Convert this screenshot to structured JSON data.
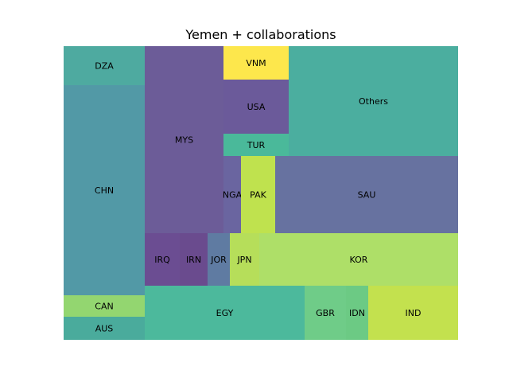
{
  "chart_data": {
    "type": "treemap",
    "title": "Yemen + collaborations",
    "items": [
      {
        "label": "DZA",
        "color": "#4eaaa0"
      },
      {
        "label": "CHN",
        "color": "#5299a6"
      },
      {
        "label": "CAN",
        "color": "#93d670"
      },
      {
        "label": "AUS",
        "color": "#4aab9c"
      },
      {
        "label": "MYS",
        "color": "#6c5c98"
      },
      {
        "label": "VNM",
        "color": "#fde74c"
      },
      {
        "label": "USA",
        "color": "#6b5a9a"
      },
      {
        "label": "TUR",
        "color": "#4ab99a"
      },
      {
        "label": "NGA",
        "color": "#6a65a0"
      },
      {
        "label": "PAK",
        "color": "#bfe24e"
      },
      {
        "label": "SAU",
        "color": "#6772a0"
      },
      {
        "label": "Others",
        "color": "#4bae9f"
      },
      {
        "label": "IRQ",
        "color": "#6b4d92"
      },
      {
        "label": "IRN",
        "color": "#6a4b8e"
      },
      {
        "label": "JOR",
        "color": "#5f7ba2"
      },
      {
        "label": "JPN",
        "color": "#b6de5a"
      },
      {
        "label": "KOR",
        "color": "#aedf68"
      },
      {
        "label": "EGY",
        "color": "#4cb99c"
      },
      {
        "label": "GBR",
        "color": "#6fcc88"
      },
      {
        "label": "IDN",
        "color": "#6cca84"
      },
      {
        "label": "IND",
        "color": "#c3e14e"
      }
    ]
  }
}
